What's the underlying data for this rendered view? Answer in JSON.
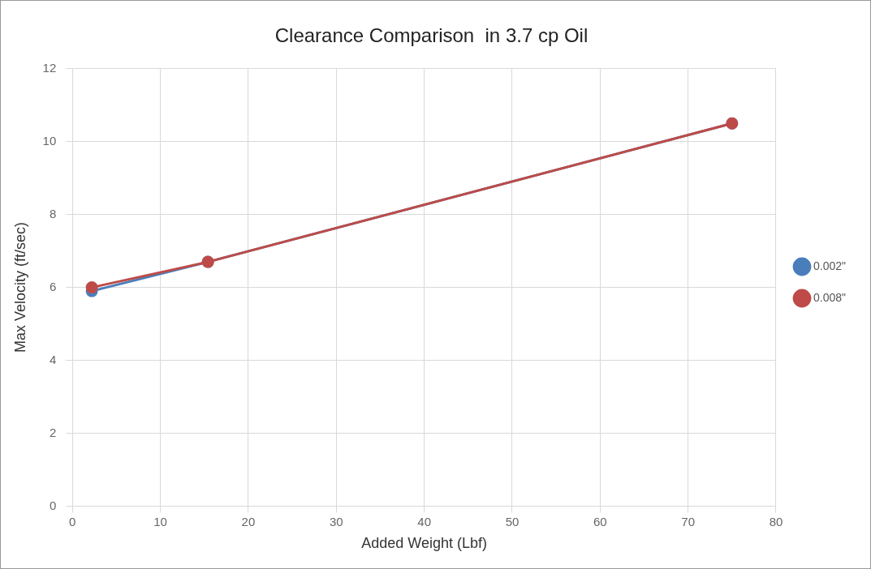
{
  "chart_data": {
    "type": "line",
    "title": "Clearance Comparison  in 3.7 cp Oil",
    "xlabel": "Added Weight (Lbf)",
    "ylabel": "Max Velocity (ft/sec)",
    "x": [
      2.2,
      15.4,
      75
    ],
    "series": [
      {
        "name": "0.002\"",
        "color": "#4a7ebb",
        "values": [
          5.9,
          6.7,
          10.5
        ]
      },
      {
        "name": "0.008\"",
        "color": "#be4b48",
        "values": [
          6.0,
          6.7,
          10.5
        ]
      }
    ],
    "xlim": [
      0,
      80
    ],
    "xticks": [
      0,
      10,
      20,
      30,
      40,
      50,
      60,
      70,
      80
    ],
    "ylim": [
      0,
      12
    ],
    "yticks": [
      0,
      2,
      4,
      6,
      8,
      10,
      12
    ],
    "grid": true,
    "legend": "right",
    "marker": "circle",
    "line_style": "solid"
  }
}
